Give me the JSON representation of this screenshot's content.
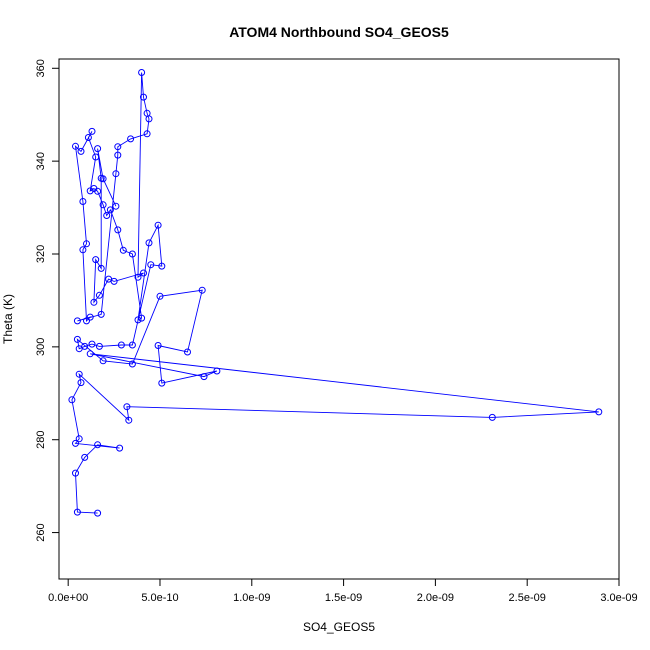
{
  "chart_data": {
    "type": "line",
    "title": "ATOM4 Northbound SO4_GEOS5",
    "xlabel": "SO4_GEOS5",
    "ylabel": "Theta (K)",
    "xlim": [
      -5e-11,
      3e-09
    ],
    "ylim": [
      250,
      362
    ],
    "xticks": [
      0,
      5e-10,
      1e-09,
      1.5e-09,
      2e-09,
      2.5e-09,
      3e-09
    ],
    "xtick_labels": [
      "0.0e+00",
      "5.0e-10",
      "1.0e-09",
      "1.5e-09",
      "2.0e-09",
      "2.5e-09",
      "3.0e-09"
    ],
    "yticks": [
      260,
      280,
      300,
      320,
      340,
      360
    ],
    "ytick_labels": [
      "260",
      "280",
      "300",
      "320",
      "340",
      "360"
    ],
    "color": "#0000ff",
    "markers": "open-circle",
    "grid": false,
    "legend": false,
    "points": [
      [
        1.6e-10,
        264.2
      ],
      [
        5e-11,
        264.4
      ],
      [
        4e-11,
        272.8
      ],
      [
        9e-11,
        276.2
      ],
      [
        1.6e-10,
        278.9
      ],
      [
        2.8e-10,
        278.2
      ],
      [
        4e-11,
        279.2
      ],
      [
        6e-11,
        280.2
      ],
      [
        2e-11,
        288.6
      ],
      [
        7e-11,
        292.3
      ],
      [
        6e-11,
        294.1
      ],
      [
        3.3e-10,
        284.2
      ],
      [
        3.2e-10,
        287.1
      ],
      [
        2.31e-09,
        284.8
      ],
      [
        2.89e-09,
        286.0
      ],
      [
        1.2e-10,
        298.5
      ],
      [
        7.4e-10,
        293.6
      ],
      [
        8.1e-10,
        294.8
      ],
      [
        5.1e-10,
        292.2
      ],
      [
        4.9e-10,
        300.3
      ],
      [
        6.5e-10,
        298.9
      ],
      [
        7.3e-10,
        312.2
      ],
      [
        5e-10,
        310.9
      ],
      [
        3.5e-10,
        296.3
      ],
      [
        1.9e-10,
        297.0
      ],
      [
        5e-11,
        301.6
      ],
      [
        6e-11,
        299.6
      ],
      [
        9e-11,
        300.1
      ],
      [
        1.3e-10,
        300.6
      ],
      [
        1.7e-10,
        300.1
      ],
      [
        2.9e-10,
        300.4
      ],
      [
        3.5e-10,
        300.4
      ],
      [
        4.5e-10,
        317.7
      ],
      [
        5.1e-10,
        317.4
      ],
      [
        4.9e-10,
        326.2
      ],
      [
        4.4e-10,
        322.4
      ],
      [
        3.8e-10,
        305.8
      ],
      [
        4e-10,
        306.2
      ],
      [
        3.5e-10,
        320.0
      ],
      [
        3e-10,
        320.8
      ],
      [
        2.7e-10,
        325.2
      ],
      [
        2.3e-10,
        329.5
      ],
      [
        2.1e-10,
        328.3
      ],
      [
        1.9e-10,
        330.6
      ],
      [
        1.6e-10,
        333.5
      ],
      [
        1.4e-10,
        334.1
      ],
      [
        1.2e-10,
        333.6
      ],
      [
        1.5e-10,
        340.9
      ],
      [
        1.1e-10,
        345.1
      ],
      [
        1.3e-10,
        346.4
      ],
      [
        7e-11,
        342.1
      ],
      [
        4e-11,
        343.2
      ],
      [
        8e-11,
        331.3
      ],
      [
        1e-10,
        322.2
      ],
      [
        8e-11,
        320.9
      ],
      [
        1e-10,
        305.6
      ],
      [
        1.2e-10,
        306.4
      ],
      [
        5e-11,
        305.6
      ],
      [
        1.8e-10,
        307.0
      ],
      [
        2.6e-10,
        337.3
      ],
      [
        2.7e-10,
        341.3
      ],
      [
        2.7e-10,
        343.1
      ],
      [
        3.4e-10,
        344.8
      ],
      [
        4.3e-10,
        345.9
      ],
      [
        4.4e-10,
        349.1
      ],
      [
        4.3e-10,
        350.3
      ],
      [
        4.1e-10,
        353.8
      ],
      [
        4e-10,
        359.1
      ],
      [
        3.8e-10,
        315.0
      ],
      [
        4.1e-10,
        315.9
      ],
      [
        2.5e-10,
        314.1
      ],
      [
        2.2e-10,
        314.6
      ],
      [
        1.7e-10,
        311.1
      ],
      [
        1.4e-10,
        309.6
      ],
      [
        1.5e-10,
        318.8
      ],
      [
        1.8e-10,
        316.9
      ],
      [
        1.8e-10,
        336.3
      ],
      [
        1.6e-10,
        342.7
      ],
      [
        1.9e-10,
        336.2
      ],
      [
        2.6e-10,
        330.3
      ]
    ]
  }
}
